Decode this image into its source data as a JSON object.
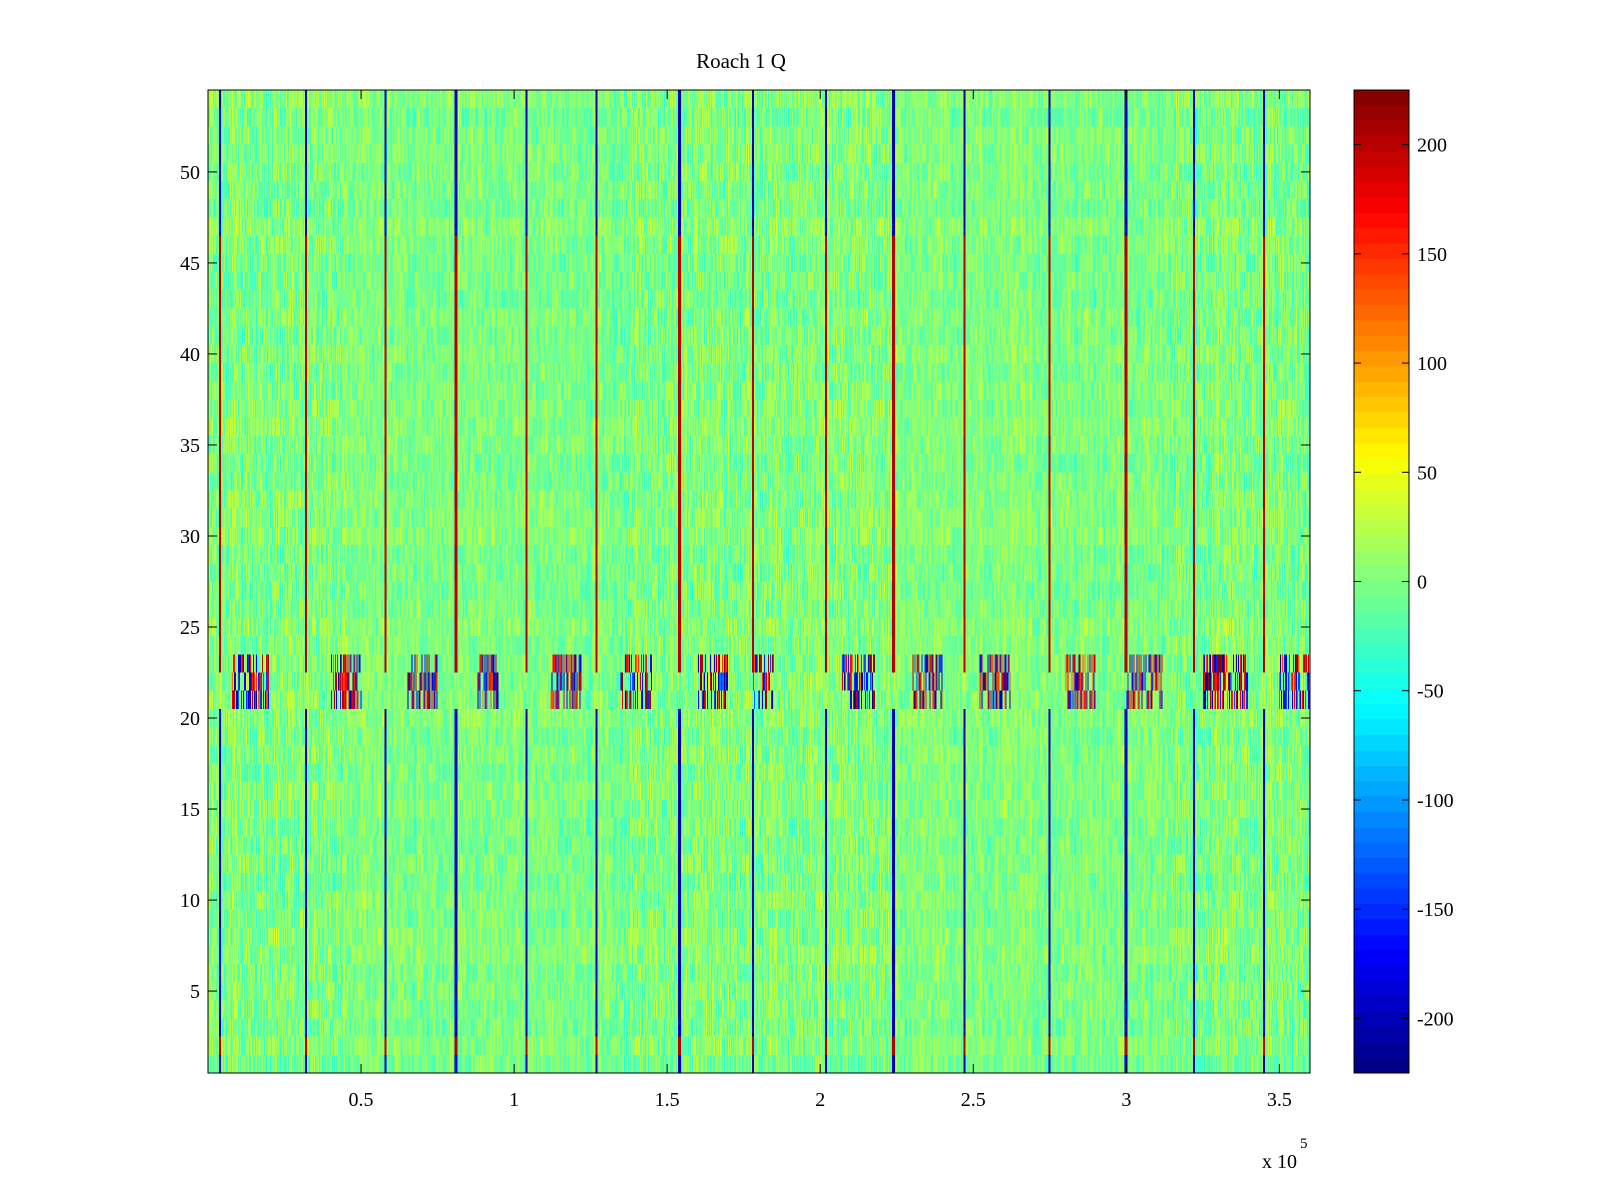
{
  "chart_data": {
    "type": "heatmap",
    "title": "Roach 1 Q",
    "xlabel": "",
    "ylabel": "",
    "x_range": [
      0,
      360000
    ],
    "y_range": [
      0.5,
      54.5
    ],
    "x_ticks": [
      {
        "value": 50000,
        "label": "0.5"
      },
      {
        "value": 100000,
        "label": "1"
      },
      {
        "value": 150000,
        "label": "1.5"
      },
      {
        "value": 200000,
        "label": "2"
      },
      {
        "value": 250000,
        "label": "2.5"
      },
      {
        "value": 300000,
        "label": "3"
      },
      {
        "value": 350000,
        "label": "3.5"
      }
    ],
    "x_exponent": {
      "base": "x 10",
      "power": "5"
    },
    "y_ticks": [
      {
        "value": 5,
        "label": "5"
      },
      {
        "value": 10,
        "label": "10"
      },
      {
        "value": 15,
        "label": "15"
      },
      {
        "value": 20,
        "label": "20"
      },
      {
        "value": 25,
        "label": "25"
      },
      {
        "value": 30,
        "label": "30"
      },
      {
        "value": 35,
        "label": "35"
      },
      {
        "value": 40,
        "label": "40"
      },
      {
        "value": 45,
        "label": "45"
      },
      {
        "value": 50,
        "label": "50"
      }
    ],
    "colorbar": {
      "colormap": "jet",
      "range": [
        -225,
        225
      ],
      "ticks": [
        {
          "value": 200,
          "label": "200"
        },
        {
          "value": 150,
          "label": "150"
        },
        {
          "value": 100,
          "label": "100"
        },
        {
          "value": 50,
          "label": "50"
        },
        {
          "value": 0,
          "label": "0"
        },
        {
          "value": -50,
          "label": "-50"
        },
        {
          "value": -100,
          "label": "-100"
        },
        {
          "value": -150,
          "label": "-150"
        },
        {
          "value": -200,
          "label": "-200"
        }
      ]
    },
    "rows": 54,
    "baseline_value_range": [
      -40,
      40
    ],
    "periodic_stripes_x": [
      4000,
      32000,
      58000,
      81000,
      104000,
      127000,
      154000,
      178000,
      202000,
      224000,
      247000,
      275000,
      300000,
      322000,
      345000
    ],
    "stripe_pattern": "high (red, ~200) on rows 23-46, 27, 2; low (blue, ~-200) on rows 1-20, 47-54",
    "noisy_band_rows": [
      21,
      23
    ],
    "noisy_band_bursts_x": [
      [
        8000,
        20000
      ],
      [
        40000,
        50000
      ],
      [
        65000,
        75000
      ],
      [
        88000,
        95000
      ],
      [
        112000,
        122000
      ],
      [
        135000,
        145000
      ],
      [
        160000,
        170000
      ],
      [
        178000,
        185000
      ],
      [
        207000,
        218000
      ],
      [
        230000,
        240000
      ],
      [
        252000,
        262000
      ],
      [
        280000,
        290000
      ],
      [
        300000,
        312000
      ],
      [
        325000,
        340000
      ],
      [
        350000,
        360000
      ]
    ]
  }
}
